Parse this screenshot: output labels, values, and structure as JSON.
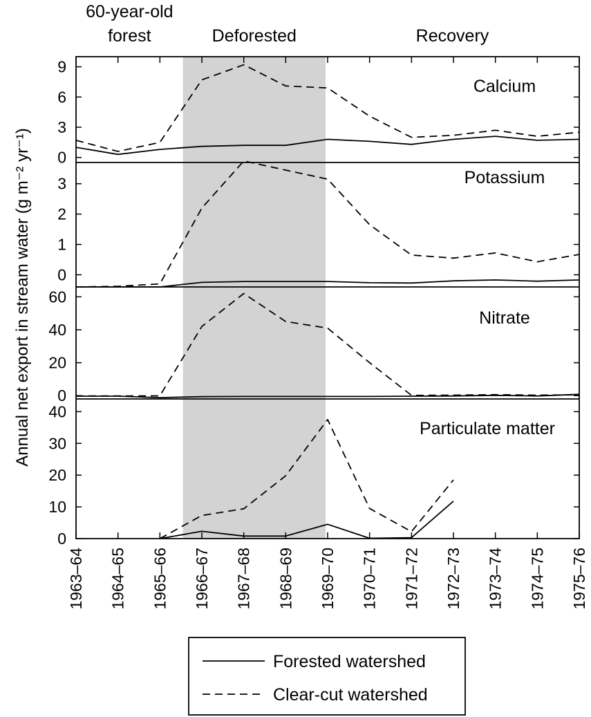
{
  "chart_data": {
    "type": "line",
    "ylabel": "Annual net export in stream water (g m⁻² yr⁻¹)",
    "x_categories": [
      "1963–64",
      "1964–65",
      "1965–66",
      "1966–67",
      "1967–68",
      "1968–69",
      "1969–70",
      "1970–71",
      "1971–72",
      "1972–73",
      "1973–74",
      "1974–75",
      "1975–76"
    ],
    "periods": [
      {
        "label_lines": [
          "60-year-old",
          "forest"
        ],
        "from": 0,
        "to": 2.55
      },
      {
        "label_lines": [
          "Deforested"
        ],
        "from": 2.55,
        "to": 5.95
      },
      {
        "label_lines": [
          "Recovery"
        ],
        "from": 5.95,
        "to": 12
      }
    ],
    "shaded_region": {
      "from": 2.55,
      "to": 5.95,
      "color": "#d3d3d3"
    },
    "legend": {
      "position": "bottom-center",
      "entries": [
        {
          "label": "Forested watershed",
          "style": "solid"
        },
        {
          "label": "Clear-cut watershed",
          "style": "dashed"
        }
      ]
    },
    "panels": [
      {
        "name": "Calcium",
        "ylim": [
          -0.5,
          10
        ],
        "yticks": [
          0,
          3,
          6,
          9
        ],
        "series": [
          {
            "name": "Forested watershed",
            "style": "solid",
            "x": [
              0,
              1,
              2,
              3,
              4,
              5,
              6,
              7,
              8,
              9,
              10,
              11,
              12
            ],
            "y": [
              1.0,
              0.3,
              0.8,
              1.1,
              1.2,
              1.2,
              1.8,
              1.6,
              1.3,
              1.8,
              2.1,
              1.7,
              1.8
            ]
          },
          {
            "name": "Clear-cut watershed",
            "style": "dashed",
            "x": [
              0,
              1,
              2,
              3,
              4,
              5,
              6,
              7,
              8,
              9,
              10,
              11,
              12
            ],
            "y": [
              1.7,
              0.6,
              1.5,
              7.7,
              9.2,
              7.1,
              6.9,
              4.1,
              2.0,
              2.2,
              2.7,
              2.1,
              2.5
            ]
          }
        ]
      },
      {
        "name": "Potassium",
        "ylim": [
          -0.4,
          3.7
        ],
        "yticks": [
          0,
          1,
          2,
          3
        ],
        "series": [
          {
            "name": "Forested watershed",
            "style": "solid",
            "x": [
              0,
              1,
              2,
              3,
              4,
              5,
              6,
              7,
              8,
              9,
              10,
              11,
              12
            ],
            "y": [
              -0.4,
              -0.4,
              -0.4,
              -0.25,
              -0.22,
              -0.22,
              -0.22,
              -0.26,
              -0.27,
              -0.2,
              -0.17,
              -0.21,
              -0.17
            ]
          },
          {
            "name": "Clear-cut watershed",
            "style": "dashed",
            "x": [
              0,
              1,
              2,
              3,
              4,
              5,
              6,
              7,
              8,
              9,
              10,
              11,
              12
            ],
            "y": [
              -0.4,
              -0.38,
              -0.3,
              2.2,
              3.75,
              3.45,
              3.15,
              1.65,
              0.65,
              0.55,
              0.72,
              0.43,
              0.67
            ]
          }
        ]
      },
      {
        "name": "Nitrate",
        "ylim": [
          -2,
          66
        ],
        "yticks": [
          0,
          20,
          40,
          60
        ],
        "series": [
          {
            "name": "Forested watershed",
            "style": "solid",
            "x": [
              0,
              1,
              2,
              3,
              4,
              5,
              6,
              7,
              8,
              9,
              10,
              11,
              12
            ],
            "y": [
              -0.3,
              -0.3,
              -1.2,
              -0.6,
              -0.5,
              -0.5,
              -0.5,
              -0.5,
              -0.3,
              -0.2,
              0.2,
              -0.2,
              0.8
            ]
          },
          {
            "name": "Clear-cut watershed",
            "style": "dashed",
            "x": [
              0,
              1,
              2,
              3,
              4,
              5,
              6,
              7,
              8,
              9,
              10,
              11,
              12
            ],
            "y": [
              -0.2,
              -0.2,
              -0.1,
              42,
              62,
              45,
              41,
              20,
              0.2,
              0.3,
              0.6,
              0.3,
              0.5
            ]
          }
        ]
      },
      {
        "name": "Particulate matter",
        "ylim": [
          0,
          44
        ],
        "yticks": [
          0,
          10,
          20,
          30,
          40
        ],
        "series": [
          {
            "name": "Forested watershed",
            "style": "solid",
            "x": [
              2,
              3,
              4,
              5,
              6,
              7,
              8,
              9
            ],
            "y": [
              0,
              2.3,
              0.8,
              0.8,
              4.5,
              0.1,
              0.3,
              11.8
            ]
          },
          {
            "name": "Clear-cut watershed",
            "style": "dashed",
            "x": [
              2,
              3,
              4,
              5,
              6,
              7,
              8,
              9
            ],
            "y": [
              0,
              7.3,
              9.4,
              19.8,
              37.5,
              9.5,
              2.2,
              18.5
            ]
          }
        ]
      }
    ]
  }
}
